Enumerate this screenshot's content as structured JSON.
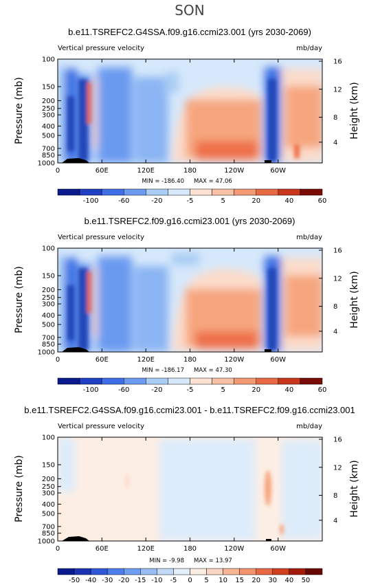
{
  "season": "SON",
  "chart_data": [
    {
      "type": "heatmap",
      "title": "b.e11.TSREFC2.G4SSA.f09.g16.ccmi23.001 (yrs 2030-2069)",
      "subtitle_left": "Vertical pressure velocity",
      "subtitle_right": "mb/day",
      "ylabel": "Pressure (mb)",
      "ylabel_right": "Height (km)",
      "pressure_ticks": [
        "100",
        "150",
        "200",
        "250",
        "300",
        "400",
        "500",
        "700",
        "850",
        "1000"
      ],
      "height_ticks": [
        "16",
        "12",
        "8",
        "4"
      ],
      "x_ticks": [
        "0",
        "60E",
        "120E",
        "180",
        "120W",
        "60W"
      ],
      "min_label": "MIN = -186.40",
      "max_label": "MAX = 47.06",
      "colorbar_labels": [
        "-100",
        "-60",
        "-20",
        "-5",
        "5",
        "20",
        "40",
        "60"
      ]
    },
    {
      "type": "heatmap",
      "title": "b.e11.TSREFC2.f09.g16.ccmi23.001 (yrs 2030-2069)",
      "subtitle_left": "Vertical pressure velocity",
      "subtitle_right": "mb/day",
      "ylabel": "Pressure (mb)",
      "ylabel_right": "Height (km)",
      "pressure_ticks": [
        "100",
        "150",
        "200",
        "250",
        "300",
        "400",
        "500",
        "700",
        "850",
        "1000"
      ],
      "height_ticks": [
        "16",
        "12",
        "8",
        "4"
      ],
      "x_ticks": [
        "0",
        "60E",
        "120E",
        "180",
        "120W",
        "60W"
      ],
      "min_label": "MIN = -186.17",
      "max_label": "MAX = 47.30",
      "colorbar_labels": [
        "-100",
        "-60",
        "-20",
        "-5",
        "5",
        "20",
        "40",
        "60"
      ]
    },
    {
      "type": "heatmap",
      "title": "b.e11.TSREFC2.G4SSA.f09.g16.ccmi23.001 - b.e11.TSREFC2.f09.g16.ccmi23.001",
      "subtitle_left": "Vertical pressure velocity",
      "subtitle_right": "mb/day",
      "ylabel": "Pressure (mb)",
      "ylabel_right": "Height (km)",
      "pressure_ticks": [
        "100",
        "150",
        "200",
        "250",
        "300",
        "400",
        "500",
        "700",
        "850",
        "1000"
      ],
      "height_ticks": [
        "16",
        "12",
        "8",
        "4"
      ],
      "x_ticks": [
        "0",
        "60E",
        "120E",
        "180",
        "120W",
        "60W"
      ],
      "min_label": "MIN = -9.98",
      "max_label": "MAX = 13.97",
      "colorbar_labels": [
        "-50",
        "-40",
        "-30",
        "-20",
        "-15",
        "-10",
        "-5",
        "0",
        "5",
        "10",
        "15",
        "20",
        "30",
        "40",
        "50"
      ]
    }
  ]
}
